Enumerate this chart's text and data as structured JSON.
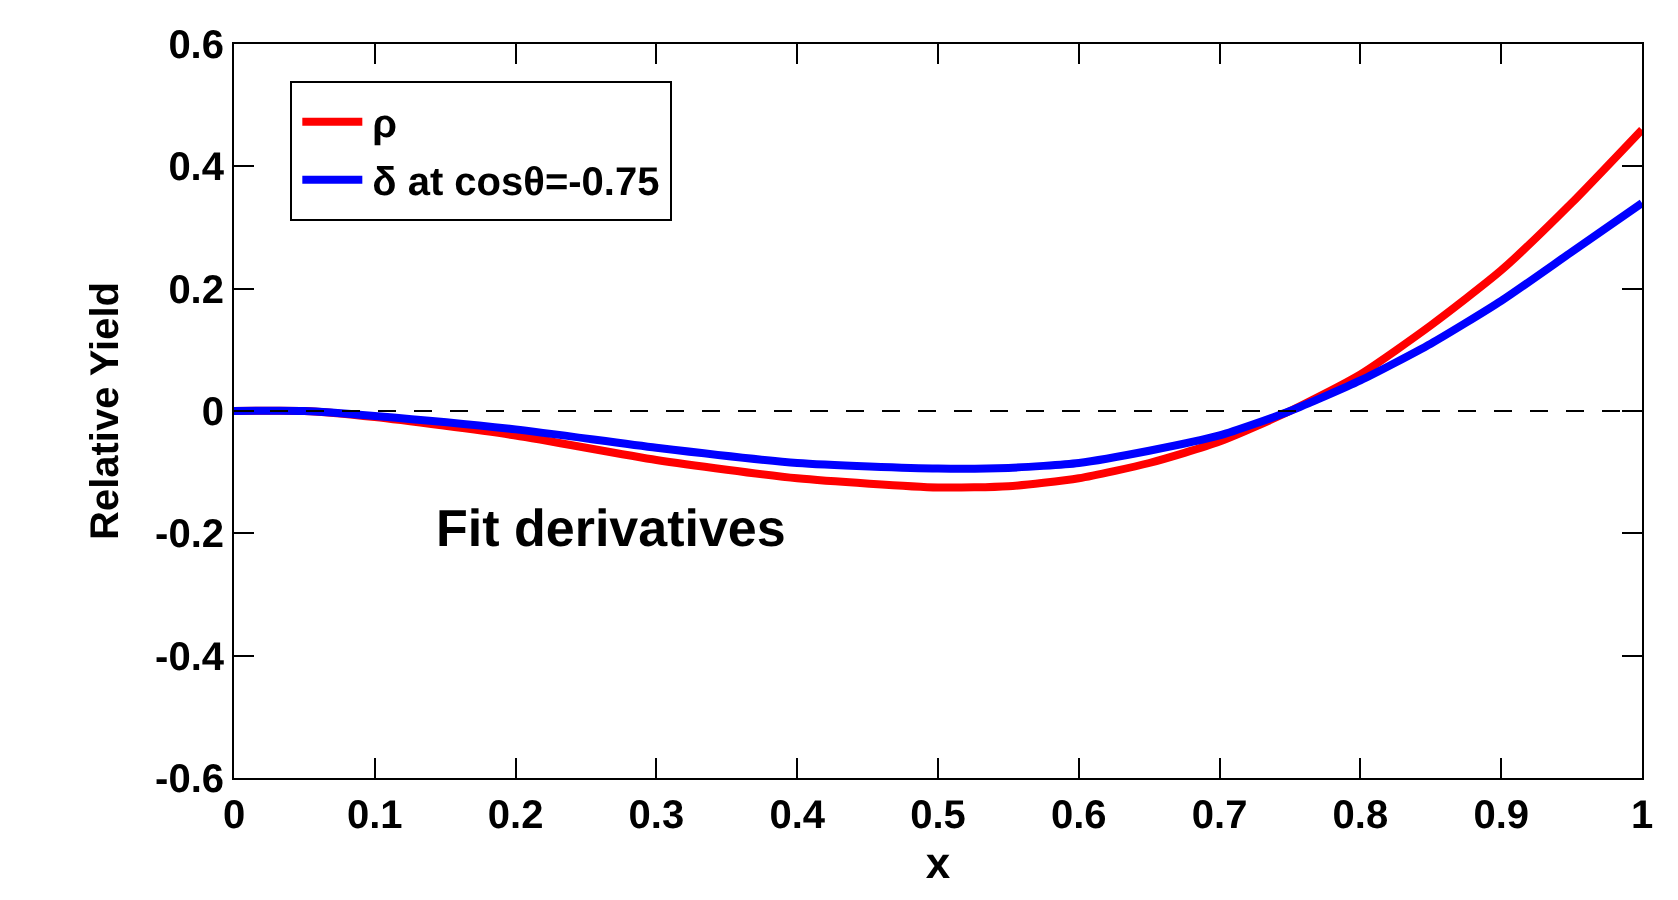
{
  "chart_data": {
    "type": "line",
    "xlabel": "x",
    "ylabel": "Relative Yield",
    "annotations": [
      "Fit derivatives"
    ],
    "x": [
      0,
      0.05,
      0.1,
      0.2,
      0.3,
      0.4,
      0.5,
      0.55,
      0.6,
      0.65,
      0.7,
      0.75,
      0.8,
      0.85,
      0.9,
      0.95,
      1
    ],
    "series": [
      {
        "name": "ρ",
        "color": "#ff0000",
        "values": [
          0,
          0,
          -0.01,
          -0.04,
          -0.08,
          -0.11,
          -0.125,
          -0.123,
          -0.11,
          -0.085,
          -0.05,
          0,
          0.06,
          0.14,
          0.23,
          0.34,
          0.46
        ]
      },
      {
        "name": "δ at cosθ=-0.75",
        "color": "#0000ff",
        "values": [
          0,
          0,
          -0.008,
          -0.03,
          -0.06,
          -0.085,
          -0.094,
          -0.093,
          -0.085,
          -0.065,
          -0.04,
          0,
          0.05,
          0.11,
          0.18,
          0.26,
          0.34
        ]
      }
    ],
    "xlim": [
      0,
      1
    ],
    "xticks": [
      0,
      0.1,
      0.2,
      0.3,
      0.4,
      0.5,
      0.6,
      0.7,
      0.8,
      0.9,
      1
    ],
    "ylim": [
      -0.6,
      0.6
    ],
    "yticks": [
      -0.6,
      -0.4,
      -0.2,
      0,
      0.2,
      0.4,
      0.6
    ],
    "ref_lines": [
      {
        "axis": "y",
        "value": 0,
        "color": "#000000",
        "line_style": "dashed"
      }
    ],
    "grid": false,
    "legend": "top left",
    "marker": "none",
    "line_style": "solid"
  }
}
